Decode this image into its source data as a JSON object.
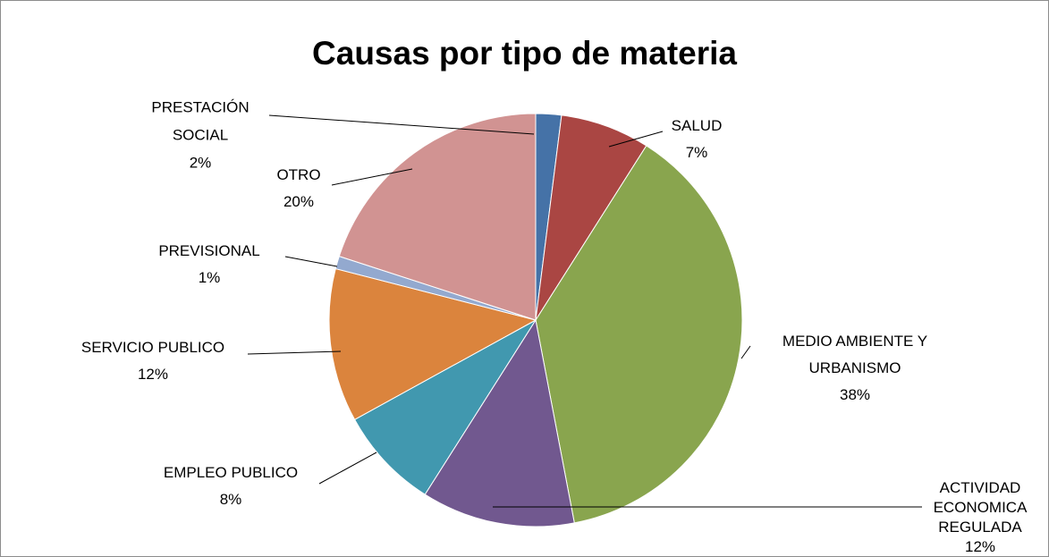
{
  "chart_data": {
    "type": "pie",
    "title": "Causas por tipo de materia",
    "categories": [
      "PRESTACIÓN SOCIAL",
      "SALUD",
      "MEDIO AMBIENTE Y URBANISMO",
      "ACTIVIDAD ECONOMICA REGULADA",
      "EMPLEO PUBLICO",
      "SERVICIO PUBLICO",
      "PREVISIONAL",
      "OTRO"
    ],
    "values": [
      2,
      7,
      38,
      12,
      8,
      12,
      1,
      20
    ],
    "value_labels": [
      "2%",
      "7%",
      "38%",
      "12%",
      "8%",
      "12%",
      "1%",
      "20%"
    ],
    "colors": [
      "#4572a7",
      "#aa4643",
      "#89a54e",
      "#71588f",
      "#4198af",
      "#db843d",
      "#93a9cf",
      "#d19392"
    ]
  }
}
